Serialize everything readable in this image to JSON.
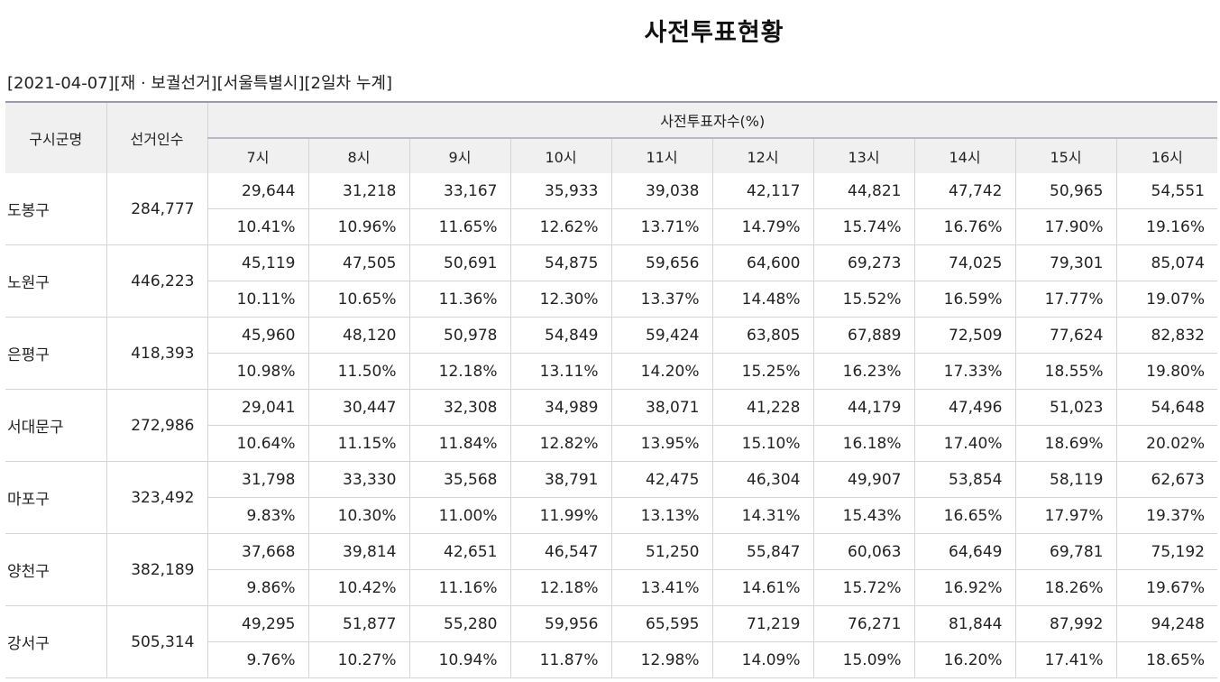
{
  "page": {
    "title": "사전투표현황",
    "subtitle": "[2021-04-07][재 · 보궐선거][서울특별시][2일차 누계]"
  },
  "table": {
    "header": {
      "district": "구시군명",
      "voters": "선거인수",
      "group": "사전투표자수(%)",
      "hours": [
        "7시",
        "8시",
        "9시",
        "10시",
        "11시",
        "12시",
        "13시",
        "14시",
        "15시",
        "16시"
      ]
    },
    "rows": [
      {
        "name": "도봉구",
        "voters": "284,777",
        "counts": [
          "29,644",
          "31,218",
          "33,167",
          "35,933",
          "39,038",
          "42,117",
          "44,821",
          "47,742",
          "50,965",
          "54,551"
        ],
        "rates": [
          "10.41%",
          "10.96%",
          "11.65%",
          "12.62%",
          "13.71%",
          "14.79%",
          "15.74%",
          "16.76%",
          "17.90%",
          "19.16%"
        ]
      },
      {
        "name": "노원구",
        "voters": "446,223",
        "counts": [
          "45,119",
          "47,505",
          "50,691",
          "54,875",
          "59,656",
          "64,600",
          "69,273",
          "74,025",
          "79,301",
          "85,074"
        ],
        "rates": [
          "10.11%",
          "10.65%",
          "11.36%",
          "12.30%",
          "13.37%",
          "14.48%",
          "15.52%",
          "16.59%",
          "17.77%",
          "19.07%"
        ]
      },
      {
        "name": "은평구",
        "voters": "418,393",
        "counts": [
          "45,960",
          "48,120",
          "50,978",
          "54,849",
          "59,424",
          "63,805",
          "67,889",
          "72,509",
          "77,624",
          "82,832"
        ],
        "rates": [
          "10.98%",
          "11.50%",
          "12.18%",
          "13.11%",
          "14.20%",
          "15.25%",
          "16.23%",
          "17.33%",
          "18.55%",
          "19.80%"
        ]
      },
      {
        "name": "서대문구",
        "voters": "272,986",
        "counts": [
          "29,041",
          "30,447",
          "32,308",
          "34,989",
          "38,071",
          "41,228",
          "44,179",
          "47,496",
          "51,023",
          "54,648"
        ],
        "rates": [
          "10.64%",
          "11.15%",
          "11.84%",
          "12.82%",
          "13.95%",
          "15.10%",
          "16.18%",
          "17.40%",
          "18.69%",
          "20.02%"
        ]
      },
      {
        "name": "마포구",
        "voters": "323,492",
        "counts": [
          "31,798",
          "33,330",
          "35,568",
          "38,791",
          "42,475",
          "46,304",
          "49,907",
          "53,854",
          "58,119",
          "62,673"
        ],
        "rates": [
          "9.83%",
          "10.30%",
          "11.00%",
          "11.99%",
          "13.13%",
          "14.31%",
          "15.43%",
          "16.65%",
          "17.97%",
          "19.37%"
        ]
      },
      {
        "name": "양천구",
        "voters": "382,189",
        "counts": [
          "37,668",
          "39,814",
          "42,651",
          "46,547",
          "51,250",
          "55,847",
          "60,063",
          "64,649",
          "69,781",
          "75,192"
        ],
        "rates": [
          "9.86%",
          "10.42%",
          "11.16%",
          "12.18%",
          "13.41%",
          "14.61%",
          "15.72%",
          "16.92%",
          "18.26%",
          "19.67%"
        ]
      },
      {
        "name": "강서구",
        "voters": "505,314",
        "counts": [
          "49,295",
          "51,877",
          "55,280",
          "59,956",
          "65,595",
          "71,219",
          "76,271",
          "81,844",
          "87,992",
          "94,248"
        ],
        "rates": [
          "9.76%",
          "10.27%",
          "10.94%",
          "11.87%",
          "12.98%",
          "14.09%",
          "15.09%",
          "16.20%",
          "17.41%",
          "18.65%"
        ]
      }
    ]
  }
}
